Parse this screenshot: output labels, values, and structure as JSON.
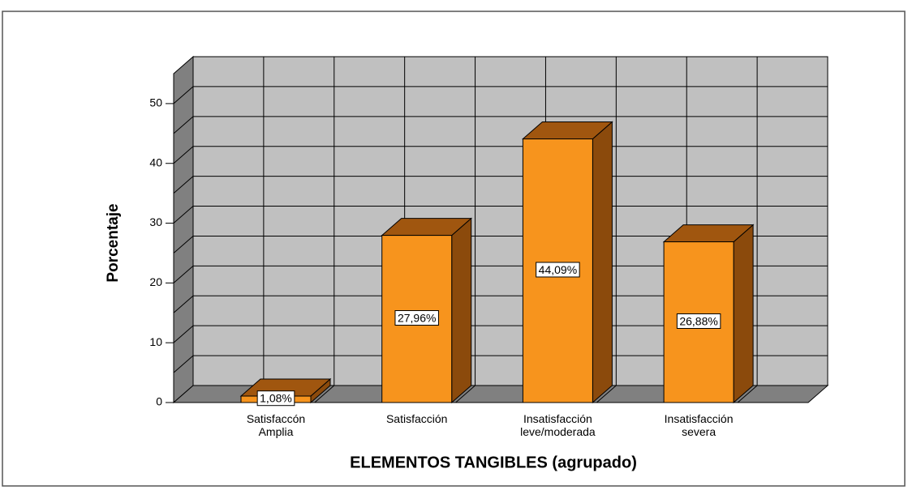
{
  "chart_data": {
    "type": "bar3d",
    "categories": [
      "Satisfaccón Amplia",
      "Satisfacción",
      "Insatisfacción leve/moderada",
      "Insatisfacción severa"
    ],
    "values": [
      1.08,
      27.96,
      44.09,
      26.88
    ],
    "value_labels": [
      "1,08%",
      "27,96%",
      "44,09%",
      "26,88%"
    ],
    "color": "#f7941d",
    "ylabel": "Porcentaje",
    "xlabel": "ELEMENTOS TANGIBLES (agrupado)",
    "ylim": [
      0,
      55
    ],
    "yticks": [
      0,
      10,
      20,
      30,
      40,
      50
    ],
    "grid": true
  }
}
